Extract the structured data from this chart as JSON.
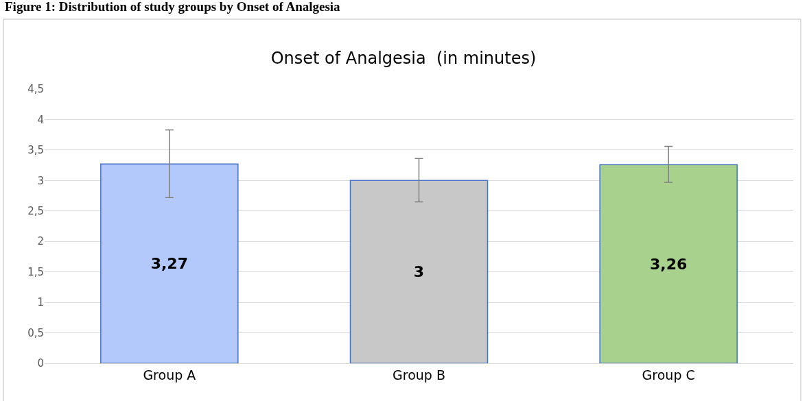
{
  "chart_data": {
    "type": "bar",
    "title": "Onset of Analgesia  (in minutes)",
    "annotations": [
      "Figure 1: Distribution of study groups by Onset of Analgesia"
    ],
    "categories": [
      "Group A",
      "Group B",
      "Group C"
    ],
    "values": [
      3.27,
      3,
      3.26
    ],
    "colors": [
      "#b4c9fb",
      "#c8c8c8",
      "#a9d18e"
    ],
    "errors": [
      [
        2.72,
        3.83
      ],
      [
        2.65,
        3.36
      ],
      [
        2.97,
        3.56
      ]
    ],
    "value_labels": [
      "3,27",
      "3",
      "3,26"
    ],
    "ylim": [
      0,
      4.5
    ],
    "yticks": [
      {
        "value": 0,
        "label": "0"
      },
      {
        "value": 0.5,
        "label": "0,5"
      },
      {
        "value": 1,
        "label": "1"
      },
      {
        "value": 1.5,
        "label": "1,5"
      },
      {
        "value": 2,
        "label": "2"
      },
      {
        "value": 2.5,
        "label": "2,5"
      },
      {
        "value": 3,
        "label": "3"
      },
      {
        "value": 3.5,
        "label": "3,5"
      },
      {
        "value": 4,
        "label": "4"
      },
      {
        "value": 4.5,
        "label": "4,5"
      }
    ],
    "grid": "y"
  }
}
